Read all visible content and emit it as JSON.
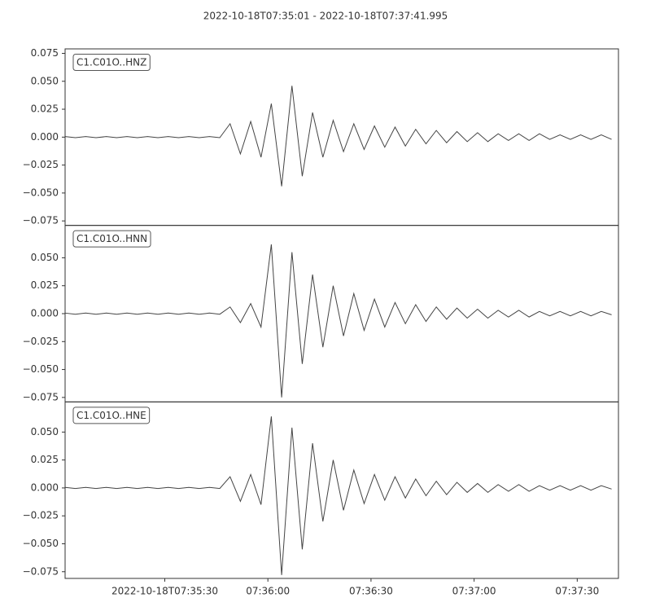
{
  "chart_data": {
    "type": "line",
    "title": "2022-10-18T07:35:01  -  2022-10-18T07:37:41.995",
    "x": [
      "2022-10-18T07:35:01",
      "2022-10-18T07:35:04",
      "2022-10-18T07:35:07",
      "2022-10-18T07:35:10",
      "2022-10-18T07:35:13",
      "2022-10-18T07:35:16",
      "2022-10-18T07:35:19",
      "2022-10-18T07:35:22",
      "2022-10-18T07:35:25",
      "2022-10-18T07:35:28",
      "2022-10-18T07:35:31",
      "2022-10-18T07:35:34",
      "2022-10-18T07:35:37",
      "2022-10-18T07:35:40",
      "2022-10-18T07:35:43",
      "2022-10-18T07:35:46",
      "2022-10-18T07:35:49",
      "2022-10-18T07:35:52",
      "2022-10-18T07:35:55",
      "2022-10-18T07:35:58",
      "2022-10-18T07:36:01",
      "2022-10-18T07:36:04",
      "2022-10-18T07:36:07",
      "2022-10-18T07:36:10",
      "2022-10-18T07:36:13",
      "2022-10-18T07:36:16",
      "2022-10-18T07:36:19",
      "2022-10-18T07:36:22",
      "2022-10-18T07:36:25",
      "2022-10-18T07:36:28",
      "2022-10-18T07:36:31",
      "2022-10-18T07:36:34",
      "2022-10-18T07:36:37",
      "2022-10-18T07:36:40",
      "2022-10-18T07:36:43",
      "2022-10-18T07:36:46",
      "2022-10-18T07:36:49",
      "2022-10-18T07:36:52",
      "2022-10-18T07:36:55",
      "2022-10-18T07:36:58",
      "2022-10-18T07:37:01",
      "2022-10-18T07:37:04",
      "2022-10-18T07:37:07",
      "2022-10-18T07:37:10",
      "2022-10-18T07:37:13",
      "2022-10-18T07:37:16",
      "2022-10-18T07:37:19",
      "2022-10-18T07:37:22",
      "2022-10-18T07:37:25",
      "2022-10-18T07:37:28",
      "2022-10-18T07:37:31",
      "2022-10-18T07:37:34",
      "2022-10-18T07:37:37",
      "2022-10-18T07:37:40"
    ],
    "xlim": [
      "2022-10-18T07:35:01",
      "2022-10-18T07:37:41.995"
    ],
    "xticks": [
      "2022-10-18T07:35:30",
      {
        "value": "2022-10-18T07:36:00",
        "label": "07:36:00"
      },
      {
        "value": "2022-10-18T07:36:30",
        "label": "07:36:30"
      },
      {
        "value": "2022-10-18T07:37:00",
        "label": "07:37:00"
      },
      {
        "value": "2022-10-18T07:37:30",
        "label": "07:37:30"
      }
    ],
    "series": [
      {
        "name": "C1.C01O..HNZ",
        "color": "#444444",
        "ylim": [
          -0.079,
          0.079
        ],
        "yticks": [
          {
            "value": -0.075,
            "label": "−0.075"
          },
          {
            "value": -0.05,
            "label": "−0.050"
          },
          {
            "value": -0.025,
            "label": "−0.025"
          },
          {
            "value": 0,
            "label": "0.000"
          },
          {
            "value": 0.025,
            "label": "0.025"
          },
          {
            "value": 0.05,
            "label": "0.050"
          },
          {
            "value": 0.075,
            "label": "0.075"
          }
        ],
        "values": [
          0.0005,
          -0.0005,
          0.0005,
          -0.0005,
          0.0005,
          -0.0005,
          0.0005,
          -0.0005,
          0.0005,
          -0.0005,
          0.0005,
          -0.0005,
          0.0005,
          -0.0005,
          0.0005,
          -0.0005,
          0.012,
          -0.015,
          0.014,
          -0.018,
          0.03,
          -0.044,
          0.046,
          -0.035,
          0.022,
          -0.018,
          0.015,
          -0.013,
          0.012,
          -0.011,
          0.01,
          -0.009,
          0.009,
          -0.008,
          0.007,
          -0.006,
          0.006,
          -0.005,
          0.005,
          -0.004,
          0.004,
          -0.004,
          0.003,
          -0.003,
          0.003,
          -0.003,
          0.003,
          -0.002,
          0.002,
          -0.002,
          0.002,
          -0.002,
          0.002,
          -0.002
        ]
      },
      {
        "name": "C1.C01O..HNN",
        "color": "#444444",
        "ylim": [
          -0.079,
          0.079
        ],
        "yticks": [
          {
            "value": -0.075,
            "label": "−0.075"
          },
          {
            "value": -0.05,
            "label": "−0.050"
          },
          {
            "value": -0.025,
            "label": "−0.025"
          },
          {
            "value": 0,
            "label": "0.000"
          },
          {
            "value": 0.025,
            "label": "0.025"
          },
          {
            "value": 0.05,
            "label": "0.050"
          }
        ],
        "values": [
          0.0005,
          -0.0005,
          0.0005,
          -0.0005,
          0.0005,
          -0.0005,
          0.0005,
          -0.0005,
          0.0005,
          -0.0005,
          0.0005,
          -0.0005,
          0.0005,
          -0.0005,
          0.0005,
          -0.0005,
          0.006,
          -0.008,
          0.009,
          -0.012,
          0.062,
          -0.075,
          0.055,
          -0.045,
          0.035,
          -0.03,
          0.025,
          -0.02,
          0.018,
          -0.015,
          0.013,
          -0.012,
          0.01,
          -0.009,
          0.008,
          -0.007,
          0.006,
          -0.005,
          0.005,
          -0.004,
          0.004,
          -0.004,
          0.003,
          -0.003,
          0.003,
          -0.003,
          0.002,
          -0.002,
          0.002,
          -0.002,
          0.002,
          -0.002,
          0.002,
          -0.001
        ]
      },
      {
        "name": "C1.C01O..HNE",
        "color": "#444444",
        "ylim": [
          -0.081,
          0.077
        ],
        "yticks": [
          {
            "value": -0.075,
            "label": "−0.075"
          },
          {
            "value": -0.05,
            "label": "−0.050"
          },
          {
            "value": -0.025,
            "label": "−0.025"
          },
          {
            "value": 0,
            "label": "0.000"
          },
          {
            "value": 0.025,
            "label": "0.025"
          },
          {
            "value": 0.05,
            "label": "0.050"
          }
        ],
        "values": [
          0.0005,
          -0.0005,
          0.0005,
          -0.0005,
          0.0005,
          -0.0005,
          0.0005,
          -0.0005,
          0.0005,
          -0.0005,
          0.0005,
          -0.0005,
          0.0005,
          -0.0005,
          0.0005,
          -0.0005,
          0.01,
          -0.012,
          0.012,
          -0.015,
          0.064,
          -0.078,
          0.054,
          -0.055,
          0.04,
          -0.03,
          0.025,
          -0.02,
          0.016,
          -0.014,
          0.012,
          -0.011,
          0.01,
          -0.009,
          0.008,
          -0.007,
          0.006,
          -0.006,
          0.005,
          -0.004,
          0.004,
          -0.004,
          0.003,
          -0.003,
          0.003,
          -0.003,
          0.002,
          -0.002,
          0.002,
          -0.002,
          0.002,
          -0.002,
          0.002,
          -0.001
        ]
      }
    ]
  }
}
